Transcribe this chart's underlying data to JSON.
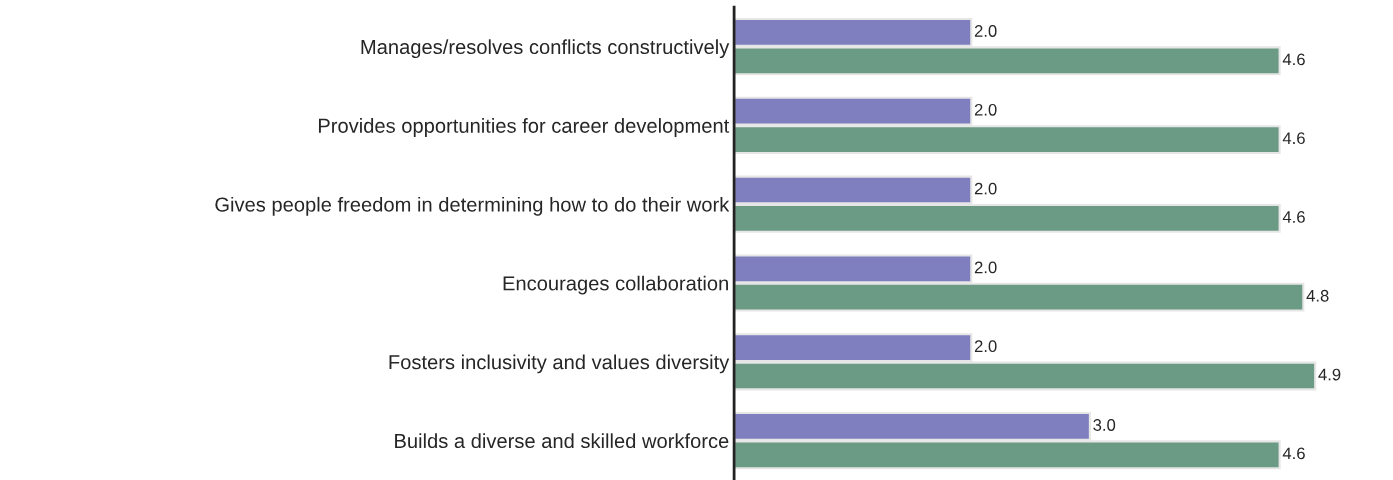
{
  "chart_data": {
    "type": "bar",
    "orientation": "horizontal",
    "categories": [
      "Manages/resolves conflicts constructively",
      "Provides opportunities for career development",
      "Gives people freedom in determining how to do their work",
      "Encourages collaboration",
      "Fosters inclusivity and values diversity",
      "Builds a diverse and skilled workforce"
    ],
    "series": [
      {
        "color": "#7f7fbf",
        "values": [
          2.0,
          2.0,
          2.0,
          2.0,
          2.0,
          3.0
        ],
        "value_labels": [
          "2.0",
          "2.0",
          "2.0",
          "2.0",
          "2.0",
          "3.0"
        ]
      },
      {
        "color": "#6b9a85",
        "values": [
          4.6,
          4.6,
          4.6,
          4.8,
          4.9,
          4.6
        ],
        "value_labels": [
          "4.6",
          "4.6",
          "4.6",
          "4.8",
          "4.9",
          "4.6"
        ]
      }
    ],
    "tick_labels": "y"
  }
}
